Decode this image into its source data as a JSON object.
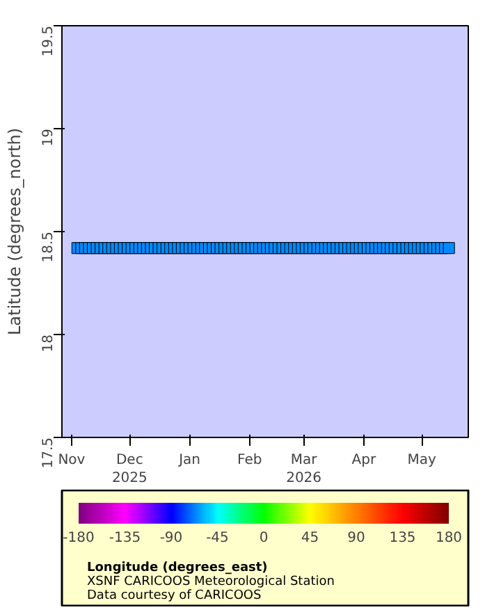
{
  "chart_data": {
    "type": "scatter",
    "ylabel": "Latitude (degrees_north)",
    "clabel": "Longitude (degrees_east)",
    "marker": "square",
    "grid": false,
    "xlim": [
      "2025-10-27",
      "2026-05-25"
    ],
    "xticks": [
      {
        "value": "2025-11-01",
        "label": "Nov"
      },
      {
        "value": "2025-12-01",
        "label": "Dec\n2025"
      },
      {
        "value": "2026-01-01",
        "label": "Jan"
      },
      {
        "value": "2026-02-01",
        "label": "Feb"
      },
      {
        "value": "2026-03-01",
        "label": "Mar\n2026"
      },
      {
        "value": "2026-04-01",
        "label": "Apr"
      },
      {
        "value": "2026-05-01",
        "label": "May"
      }
    ],
    "ylim": [
      17.5,
      19.5
    ],
    "yticks": [
      17.5,
      18,
      18.5,
      19,
      19.5
    ],
    "clim": [
      -180,
      180
    ],
    "cticks": [
      -180,
      -135,
      -90,
      -45,
      0,
      45,
      90,
      135,
      180
    ],
    "annotations": [
      "XSNF CARICOOS Meteorological Station",
      "Data courtesy of CARICOOS"
    ],
    "series": [
      {
        "x": [
          "2025-11-04",
          "2025-11-06",
          "2025-11-08",
          "2025-11-10",
          "2025-11-12",
          "2025-11-14",
          "2025-11-16",
          "2025-11-18",
          "2025-11-20",
          "2025-11-22",
          "2025-11-24",
          "2025-11-26",
          "2025-11-28",
          "2025-11-30",
          "2025-12-02",
          "2025-12-04",
          "2025-12-06",
          "2025-12-08",
          "2025-12-10",
          "2025-12-12",
          "2025-12-14",
          "2025-12-16",
          "2025-12-18",
          "2025-12-20",
          "2025-12-22",
          "2025-12-24",
          "2025-12-26",
          "2025-12-28",
          "2025-12-30",
          "2026-01-01",
          "2026-01-03",
          "2026-01-05",
          "2026-01-07",
          "2026-01-09",
          "2026-01-11",
          "2026-01-13",
          "2026-01-15",
          "2026-01-17",
          "2026-01-19",
          "2026-01-21",
          "2026-01-23",
          "2026-01-25",
          "2026-01-27",
          "2026-01-29",
          "2026-01-31",
          "2026-02-02",
          "2026-02-04",
          "2026-02-06",
          "2026-02-08",
          "2026-02-10",
          "2026-02-12",
          "2026-02-14",
          "2026-02-16",
          "2026-02-18",
          "2026-02-20",
          "2026-02-22",
          "2026-02-24",
          "2026-02-26",
          "2026-02-28",
          "2026-03-02",
          "2026-03-04",
          "2026-03-06",
          "2026-03-08",
          "2026-03-10",
          "2026-03-12",
          "2026-03-14",
          "2026-03-16",
          "2026-03-18",
          "2026-03-20",
          "2026-03-22",
          "2026-03-24",
          "2026-03-26",
          "2026-03-28",
          "2026-03-30",
          "2026-04-01",
          "2026-04-03",
          "2026-04-05",
          "2026-04-07",
          "2026-04-09",
          "2026-04-11",
          "2026-04-13",
          "2026-04-15",
          "2026-04-17",
          "2026-04-19",
          "2026-04-21",
          "2026-04-23",
          "2026-04-25",
          "2026-04-27",
          "2026-04-29",
          "2026-05-01",
          "2026-05-03",
          "2026-05-05",
          "2026-05-07",
          "2026-05-09",
          "2026-05-11",
          "2026-05-13",
          "2026-05-15"
        ],
        "values": [
          18.42,
          18.42,
          18.42,
          18.42,
          18.42,
          18.42,
          18.42,
          18.42,
          18.42,
          18.42,
          18.42,
          18.42,
          18.42,
          18.42,
          18.42,
          18.42,
          18.42,
          18.42,
          18.42,
          18.42,
          18.42,
          18.42,
          18.42,
          18.42,
          18.42,
          18.42,
          18.42,
          18.42,
          18.42,
          18.42,
          18.42,
          18.42,
          18.42,
          18.42,
          18.42,
          18.42,
          18.42,
          18.42,
          18.42,
          18.42,
          18.42,
          18.42,
          18.42,
          18.42,
          18.42,
          18.42,
          18.42,
          18.42,
          18.42,
          18.42,
          18.42,
          18.42,
          18.42,
          18.42,
          18.42,
          18.42,
          18.42,
          18.42,
          18.42,
          18.42,
          18.42,
          18.42,
          18.42,
          18.42,
          18.42,
          18.42,
          18.42,
          18.42,
          18.42,
          18.42,
          18.42,
          18.42,
          18.42,
          18.42,
          18.42,
          18.42,
          18.42,
          18.42,
          18.42,
          18.42,
          18.42,
          18.42,
          18.42,
          18.42,
          18.42,
          18.42,
          18.42,
          18.42,
          18.42,
          18.42,
          18.42,
          18.42,
          18.42,
          18.42,
          18.42,
          18.42,
          18.42
        ],
        "cvalues": [
          -65.6,
          -65.6,
          -65.6,
          -65.6,
          -65.6,
          -65.6,
          -65.6,
          -65.6,
          -65.6,
          -65.6,
          -65.6,
          -65.6,
          -65.6,
          -65.6,
          -65.6,
          -65.6,
          -65.6,
          -65.6,
          -65.6,
          -65.6,
          -65.6,
          -65.6,
          -65.6,
          -65.6,
          -65.6,
          -65.6,
          -65.6,
          -65.6,
          -65.6,
          -65.6,
          -65.6,
          -65.6,
          -65.6,
          -65.6,
          -65.6,
          -65.6,
          -65.6,
          -65.6,
          -65.6,
          -65.6,
          -65.6,
          -65.6,
          -65.6,
          -65.6,
          -65.6,
          -65.6,
          -65.6,
          -65.6,
          -65.6,
          -65.6,
          -65.6,
          -65.6,
          -65.6,
          -65.6,
          -65.6,
          -65.6,
          -65.6,
          -65.6,
          -65.6,
          -65.6,
          -65.6,
          -65.6,
          -65.6,
          -65.6,
          -65.6,
          -65.6,
          -65.6,
          -65.6,
          -65.6,
          -65.6,
          -65.6,
          -65.6,
          -65.6,
          -65.6,
          -65.6,
          -65.6,
          -65.6,
          -65.6,
          -65.6,
          -65.6,
          -65.6,
          -65.6,
          -65.6,
          -65.6,
          -65.6,
          -65.6,
          -65.6,
          -65.6,
          -65.6,
          -65.6,
          -65.6,
          -65.6,
          -65.6,
          -65.6,
          -65.6,
          -65.6,
          -65.6
        ]
      }
    ]
  }
}
